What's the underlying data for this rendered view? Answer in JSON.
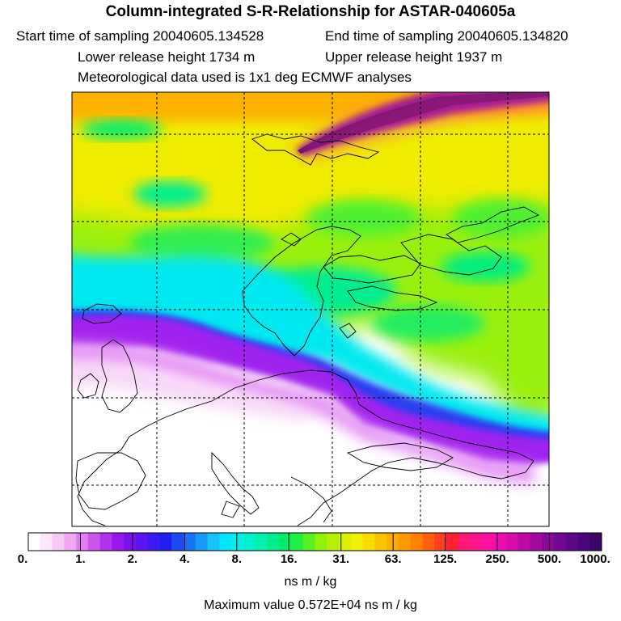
{
  "header": {
    "title": "Column-integrated S-R-Relationship for ASTAR-040605a",
    "start_time": "Start time of sampling 20040605.134528",
    "end_time": "End time of sampling 20040605.134820",
    "lower_height": "Lower release height 1734 m",
    "upper_height": "Upper release height 1937 m",
    "met_data": "Meteorological data used is 1x1 deg ECMWF analyses"
  },
  "colorbar": {
    "labels": [
      "0.",
      "1.",
      "2.",
      "4.",
      "8.",
      "16.",
      "31.",
      "63.",
      "125.",
      "250.",
      "500.",
      "1000."
    ],
    "colors": [
      "#ffffff",
      "#fde6fb",
      "#f9c9f6",
      "#f3a6f2",
      "#e07ef2",
      "#cc55f0",
      "#b233ee",
      "#9a17ee",
      "#7a12ee",
      "#5a16ee",
      "#3a1aef",
      "#1f1ff0",
      "#1a4cf2",
      "#1a73f4",
      "#199af6",
      "#18c2f8",
      "#00e6ff",
      "#00f0e8",
      "#00f2cc",
      "#00f0b0",
      "#00ee8a",
      "#00ec66",
      "#20ee40",
      "#5af020",
      "#8cf208",
      "#b4f004",
      "#d8f000",
      "#f0f000",
      "#f8dc00",
      "#fbc400",
      "#fcae00",
      "#fd9800",
      "#ff7f00",
      "#ff6010",
      "#ff4020",
      "#ff2030",
      "#ff1878",
      "#ff148c",
      "#ff10a0",
      "#f00cae",
      "#d80caa",
      "#c00aa6",
      "#a40aa0",
      "#8a089a",
      "#700894",
      "#5c0888",
      "#4a067a",
      "#3a0468"
    ],
    "units": "ns m / kg",
    "max_value": "Maximum value  0.572E+04 ns m / kg"
  }
}
